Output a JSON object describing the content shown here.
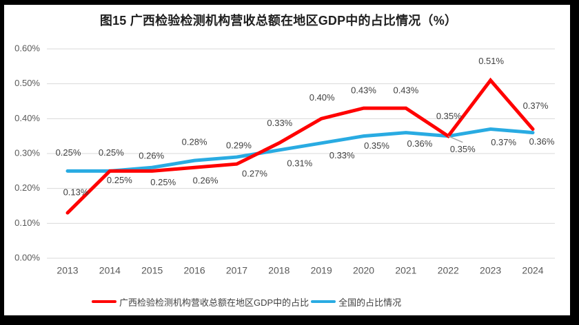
{
  "chart_data": {
    "type": "line",
    "title": "图15 广西检验检测机构营收总额在地区GDP中的占比情况（%）",
    "xlabel": "",
    "ylabel": "",
    "categories": [
      "2013",
      "2014",
      "2015",
      "2016",
      "2017",
      "2018",
      "2019",
      "2020",
      "2021",
      "2022",
      "2023",
      "2024"
    ],
    "series": [
      {
        "name": "广西检验检测机构营收总额在地区GDP中的占比",
        "color": "#ff0000",
        "values": [
          0.13,
          0.25,
          0.25,
          0.26,
          0.27,
          0.33,
          0.4,
          0.43,
          0.43,
          0.35,
          0.51,
          0.37
        ],
        "labels": [
          "0.13%",
          "0.25%",
          "0.25%",
          "0.26%",
          "0.27%",
          "0.33%",
          "0.40%",
          "0.43%",
          "0.43%",
          "0.35%",
          "0.51%",
          "0.37%"
        ],
        "label_offsets": [
          [
            12,
            -29
          ],
          [
            14,
            14
          ],
          [
            16,
            17
          ],
          [
            16,
            20
          ],
          [
            26,
            15
          ],
          [
            1,
            -28
          ],
          [
            1,
            -30
          ],
          [
            0,
            -25
          ],
          [
            0,
            -25
          ],
          [
            1,
            -28
          ],
          [
            1,
            -27
          ],
          [
            4,
            -33
          ]
        ]
      },
      {
        "name": "全国的占比情况",
        "color": "#29abe2",
        "values": [
          0.25,
          0.25,
          0.26,
          0.28,
          0.29,
          0.31,
          0.33,
          0.35,
          0.36,
          0.35,
          0.37,
          0.36
        ],
        "labels": [
          "0.25%",
          "0.25%",
          "0.26%",
          "0.28%",
          "0.29%",
          "0.31%",
          "0.33%",
          "0.35%",
          "0.36%",
          "0.35%",
          "0.37%",
          "0.36%"
        ],
        "label_offsets": [
          [
            1,
            -26
          ],
          [
            2,
            -26
          ],
          [
            -1,
            -16
          ],
          [
            0,
            -26
          ],
          [
            3,
            -16
          ],
          [
            30,
            20
          ],
          [
            30,
            19
          ],
          [
            19,
            15
          ],
          [
            20,
            17
          ],
          [
            21,
            20
          ],
          [
            19,
            20
          ],
          [
            13,
            14
          ]
        ],
        "leader_line": {
          "index": 9,
          "dx": 21,
          "dy": 9,
          "color": "#a6a6a6"
        }
      }
    ],
    "y_ticks": [
      "0.00%",
      "0.10%",
      "0.20%",
      "0.30%",
      "0.40%",
      "0.50%",
      "0.60%"
    ],
    "ylim": [
      0,
      0.6
    ],
    "grid": true,
    "grid_color": "#d9d9d9",
    "axis_tick_color": "#595959",
    "data_label_color": "#3f3f3f",
    "legend_position": "bottom"
  }
}
